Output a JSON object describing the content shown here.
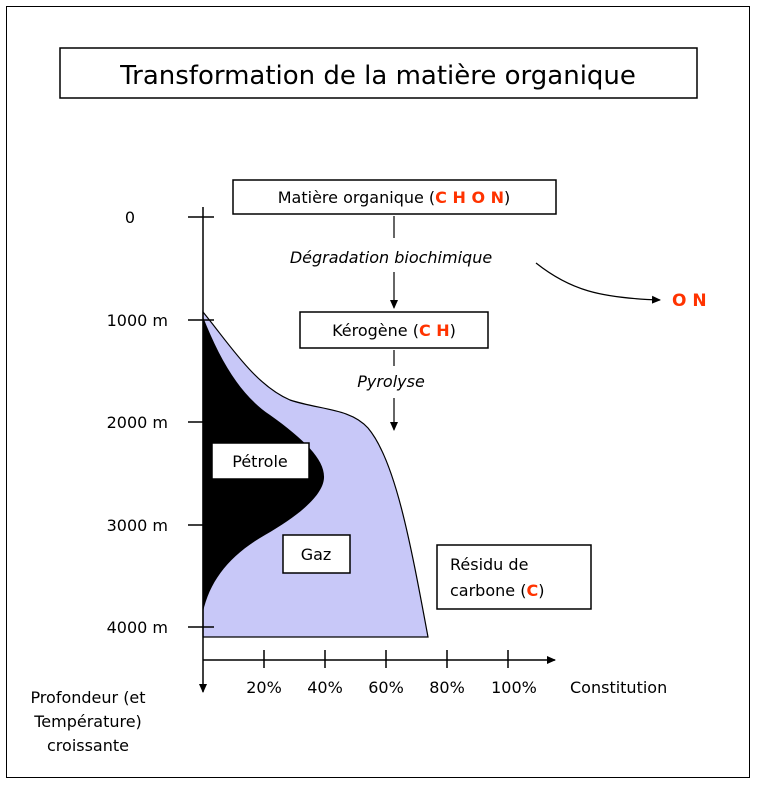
{
  "title": "Transformation de la matière organique",
  "stages": {
    "matiere": {
      "label": "Matière organique (",
      "elements": "C H O N",
      "close": ")"
    },
    "degradation": "Dégradation biochimique",
    "lost_elements": "O N",
    "kerogene": {
      "label": "Kérogène (",
      "elements": "C H",
      "close": ")"
    },
    "pyrolyse": "Pyrolyse",
    "residu": {
      "line1": "Résidu de",
      "line2": "carbone (",
      "elements": "C",
      "close": ")"
    }
  },
  "regions": {
    "petrole": "Pétrole",
    "gaz": "Gaz"
  },
  "axes": {
    "depth_ticks": [
      "0",
      "1000 m",
      "2000 m",
      "3000 m",
      "4000 m"
    ],
    "depth_label": [
      "Profondeur (et",
      "Température)",
      "croissante"
    ],
    "composition_ticks": [
      "20%",
      "40%",
      "60%",
      "80%",
      "100%"
    ],
    "composition_label": "Constitution"
  },
  "colors": {
    "gaz": "#c8c8f8",
    "petrole": "#000000",
    "elements": "#ff3300"
  }
}
